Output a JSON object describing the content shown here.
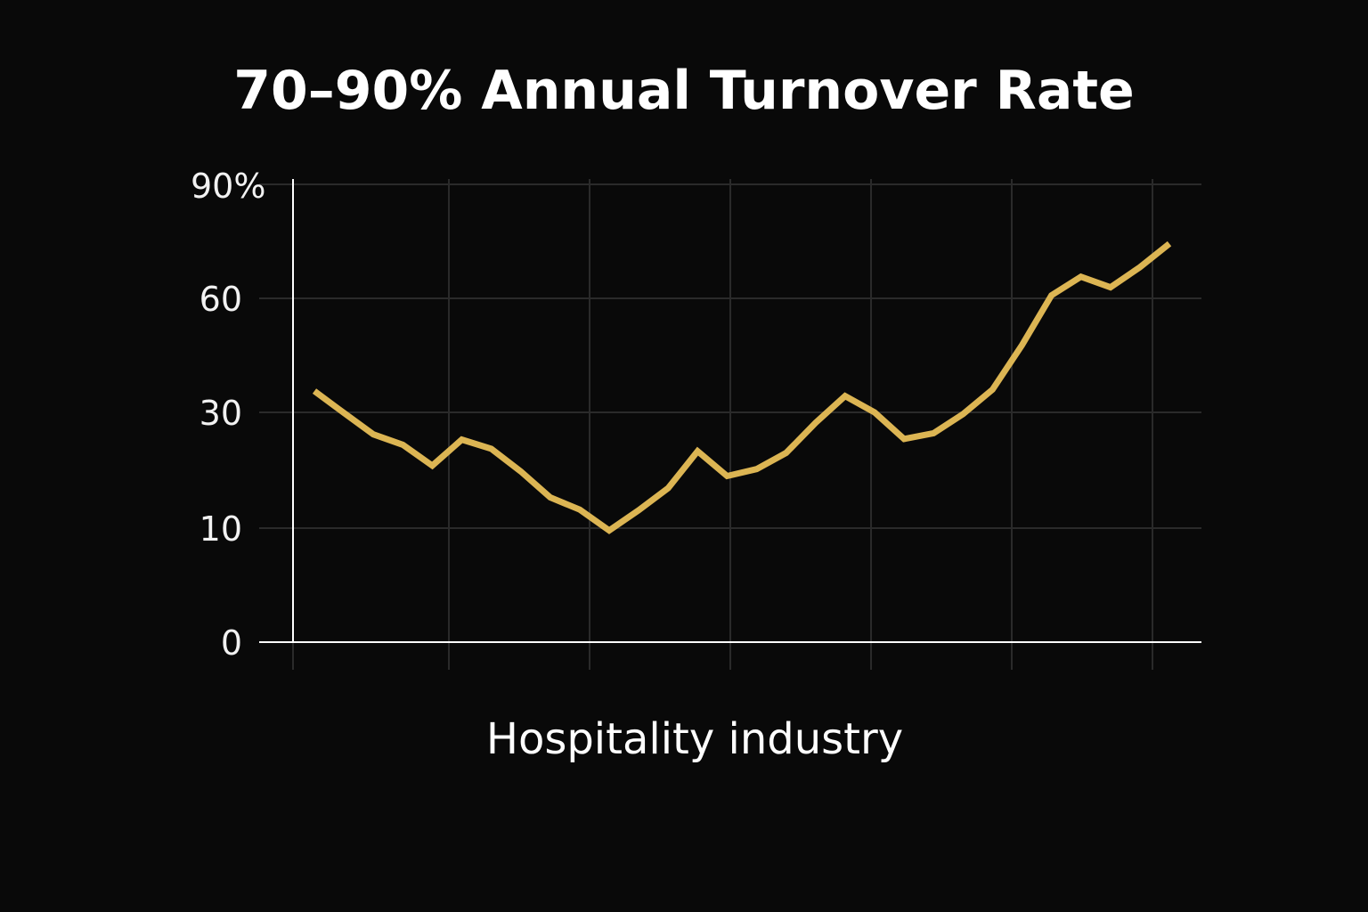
{
  "colors": {
    "background": "#090909",
    "line": "#dcb553",
    "grid": "#2a2a2a",
    "axis": "#ffffff",
    "text": "#ffffff"
  },
  "chart_data": {
    "type": "line",
    "title": "70–90% Annual Turnover Rate",
    "xlabel": "Hospitality industry",
    "ylabel": "",
    "y_ticks": [
      {
        "value": 0,
        "label": "0"
      },
      {
        "value": 10,
        "label": "10"
      },
      {
        "value": 30,
        "label": "30"
      },
      {
        "value": 60,
        "label": "60"
      },
      {
        "value": 90,
        "label": "90%"
      }
    ],
    "ylim": [
      0,
      90
    ],
    "grid": true,
    "legend": "none",
    "series": [
      {
        "values": [
          35.6,
          29.9,
          26.2,
          24.4,
          20.8,
          25.3,
          23.7,
          19.8,
          15.3,
          13.2,
          9.8,
          13.1,
          16.9,
          23.3,
          19.0,
          20.2,
          23.0,
          28.2,
          34.3,
          30.0,
          25.4,
          26.4,
          29.7,
          36.0,
          47.7,
          60.8,
          65.7,
          62.9,
          68.2,
          74.4
        ]
      }
    ]
  }
}
